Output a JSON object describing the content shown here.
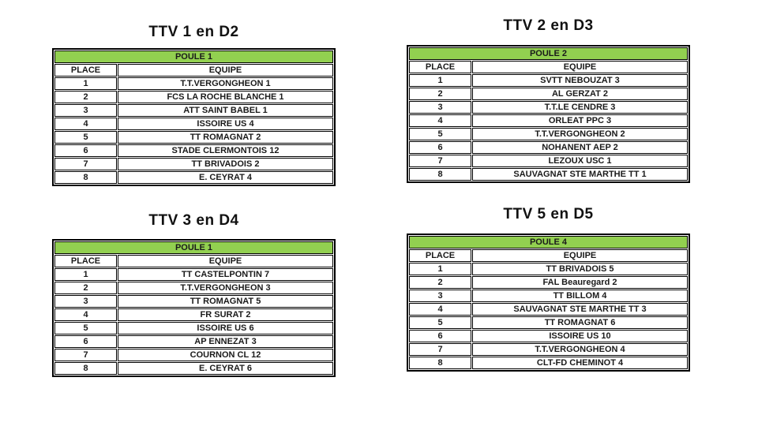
{
  "page": {
    "background": "#ffffff"
  },
  "colors": {
    "poule_header_green": "#92D050",
    "table_border": "#000000",
    "text": "#000000"
  },
  "tables": [
    {
      "title": "TTV 1 en D2",
      "poule": "POULE 1",
      "columns": [
        "PLACE",
        "EQUIPE"
      ],
      "rows": [
        [
          "1",
          "T.T.VERGONGHEON 1"
        ],
        [
          "2",
          "FCS LA ROCHE BLANCHE 1"
        ],
        [
          "3",
          "ATT SAINT BABEL 1"
        ],
        [
          "4",
          "ISSOIRE US 4"
        ],
        [
          "5",
          "TT ROMAGNAT 2"
        ],
        [
          "6",
          "STADE CLERMONTOIS 12"
        ],
        [
          "7",
          "TT BRIVADOIS 2"
        ],
        [
          "8",
          "E. CEYRAT 4"
        ]
      ]
    },
    {
      "title": "TTV 2 en D3",
      "poule": "POULE 2",
      "columns": [
        "PLACE",
        "EQUIPE"
      ],
      "rows": [
        [
          "1",
          "SVTT NEBOUZAT 3"
        ],
        [
          "2",
          "AL GERZAT 2"
        ],
        [
          "3",
          "T.T.LE CENDRE 3"
        ],
        [
          "4",
          "ORLEAT PPC 3"
        ],
        [
          "5",
          "T.T.VERGONGHEON 2"
        ],
        [
          "6",
          "NOHANENT AEP 2"
        ],
        [
          "7",
          "LEZOUX USC 1"
        ],
        [
          "8",
          "SAUVAGNAT STE MARTHE TT 1"
        ]
      ]
    },
    {
      "title": "TTV 3 en D4",
      "poule": "POULE 1",
      "columns": [
        "PLACE",
        "EQUIPE"
      ],
      "rows": [
        [
          "1",
          "TT CASTELPONTIN 7"
        ],
        [
          "2",
          "T.T.VERGONGHEON 3"
        ],
        [
          "3",
          "TT ROMAGNAT 5"
        ],
        [
          "4",
          "FR SURAT 2"
        ],
        [
          "5",
          "ISSOIRE US 6"
        ],
        [
          "6",
          "AP ENNEZAT 3"
        ],
        [
          "7",
          "COURNON CL 12"
        ],
        [
          "8",
          "E. CEYRAT 6"
        ]
      ]
    },
    {
      "title": "TTV 5 en D5",
      "poule": "POULE 4",
      "columns": [
        "PLACE",
        "EQUIPE"
      ],
      "rows": [
        [
          "1",
          "TT BRIVADOIS 5"
        ],
        [
          "2",
          "FAL Beauregard 2"
        ],
        [
          "3",
          "TT BILLOM 4"
        ],
        [
          "4",
          "SAUVAGNAT STE MARTHE TT 3"
        ],
        [
          "5",
          "TT ROMAGNAT 6"
        ],
        [
          "6",
          "ISSOIRE US 10"
        ],
        [
          "7",
          "T.T.VERGONGHEON 4"
        ],
        [
          "8",
          "CLT-FD CHEMINOT 4"
        ]
      ]
    }
  ]
}
